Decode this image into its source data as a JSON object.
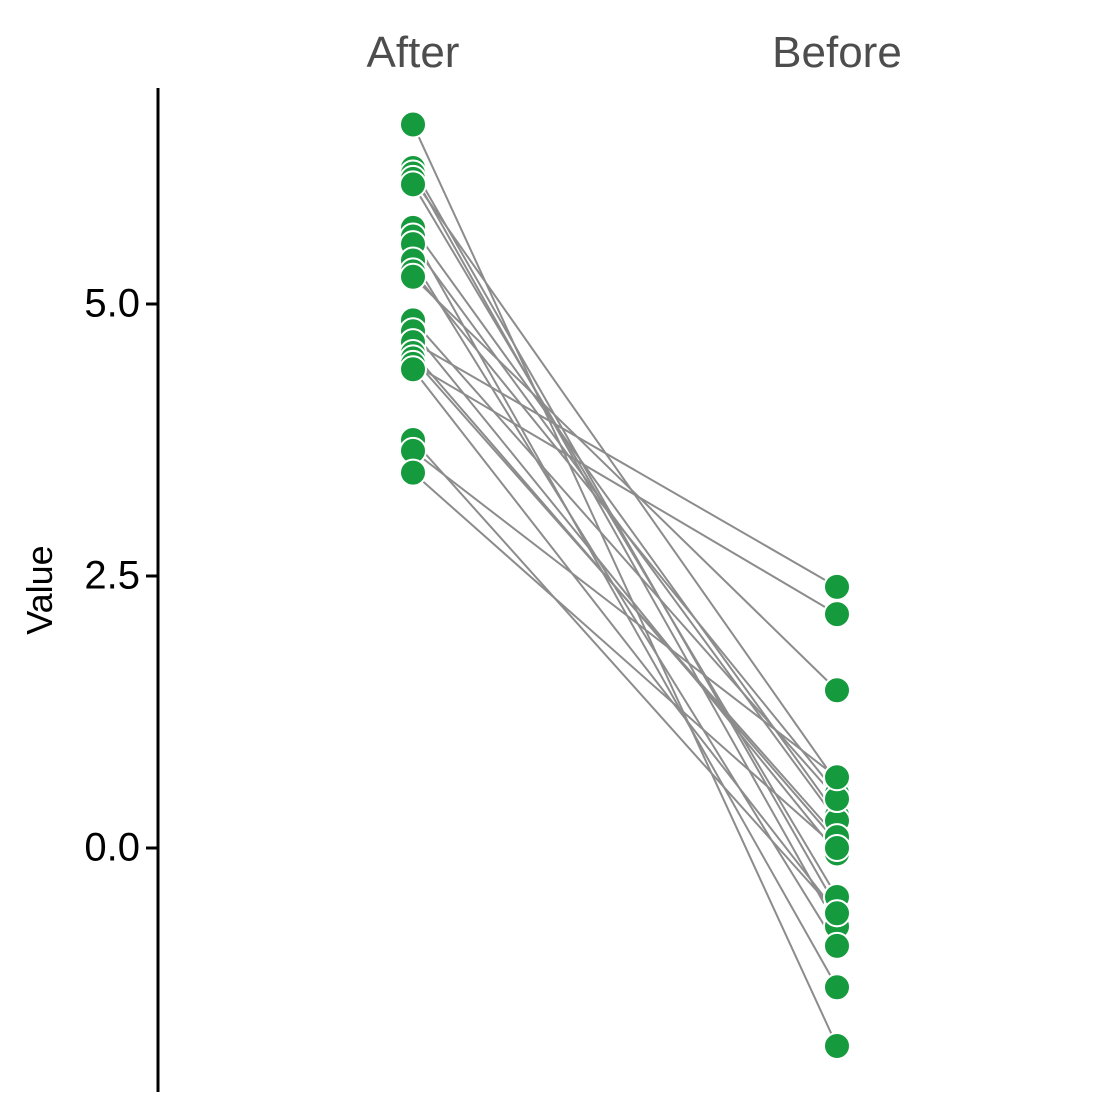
{
  "chart_data": {
    "type": "scatter",
    "title": "",
    "xlabel": "",
    "ylabel": "Value",
    "categories": [
      "After",
      "Before"
    ],
    "y_ticks": [
      "0.0",
      "2.5",
      "5.0"
    ],
    "ylim": [
      -2.2,
      6.6
    ],
    "pairs": [
      {
        "after": 6.65,
        "before": -1.82
      },
      {
        "after": 6.25,
        "before": -0.55
      },
      {
        "after": 6.2,
        "before": -0.72
      },
      {
        "after": 6.15,
        "before": 0.6
      },
      {
        "after": 6.1,
        "before": -0.45
      },
      {
        "after": 5.7,
        "before": 0.3
      },
      {
        "after": 5.62,
        "before": -1.28
      },
      {
        "after": 5.55,
        "before": 0.25
      },
      {
        "after": 5.4,
        "before": -0.9
      },
      {
        "after": 5.3,
        "before": 0.5
      },
      {
        "after": 5.25,
        "before": 1.45
      },
      {
        "after": 4.85,
        "before": 0.45
      },
      {
        "after": 4.75,
        "before": -0.05
      },
      {
        "after": 4.65,
        "before": 2.4
      },
      {
        "after": 4.55,
        "before": 0.05
      },
      {
        "after": 4.5,
        "before": 0.1
      },
      {
        "after": 4.45,
        "before": 2.15
      },
      {
        "after": 4.4,
        "before": -0.6
      },
      {
        "after": 3.75,
        "before": -0.6
      },
      {
        "after": 3.65,
        "before": 0.65
      },
      {
        "after": 3.45,
        "before": 0.0
      }
    ],
    "grid": false,
    "legend": "none",
    "colors": {
      "point": "#159a3e",
      "line": "#8c8c8c",
      "group_label": "#4d4d4d"
    }
  }
}
